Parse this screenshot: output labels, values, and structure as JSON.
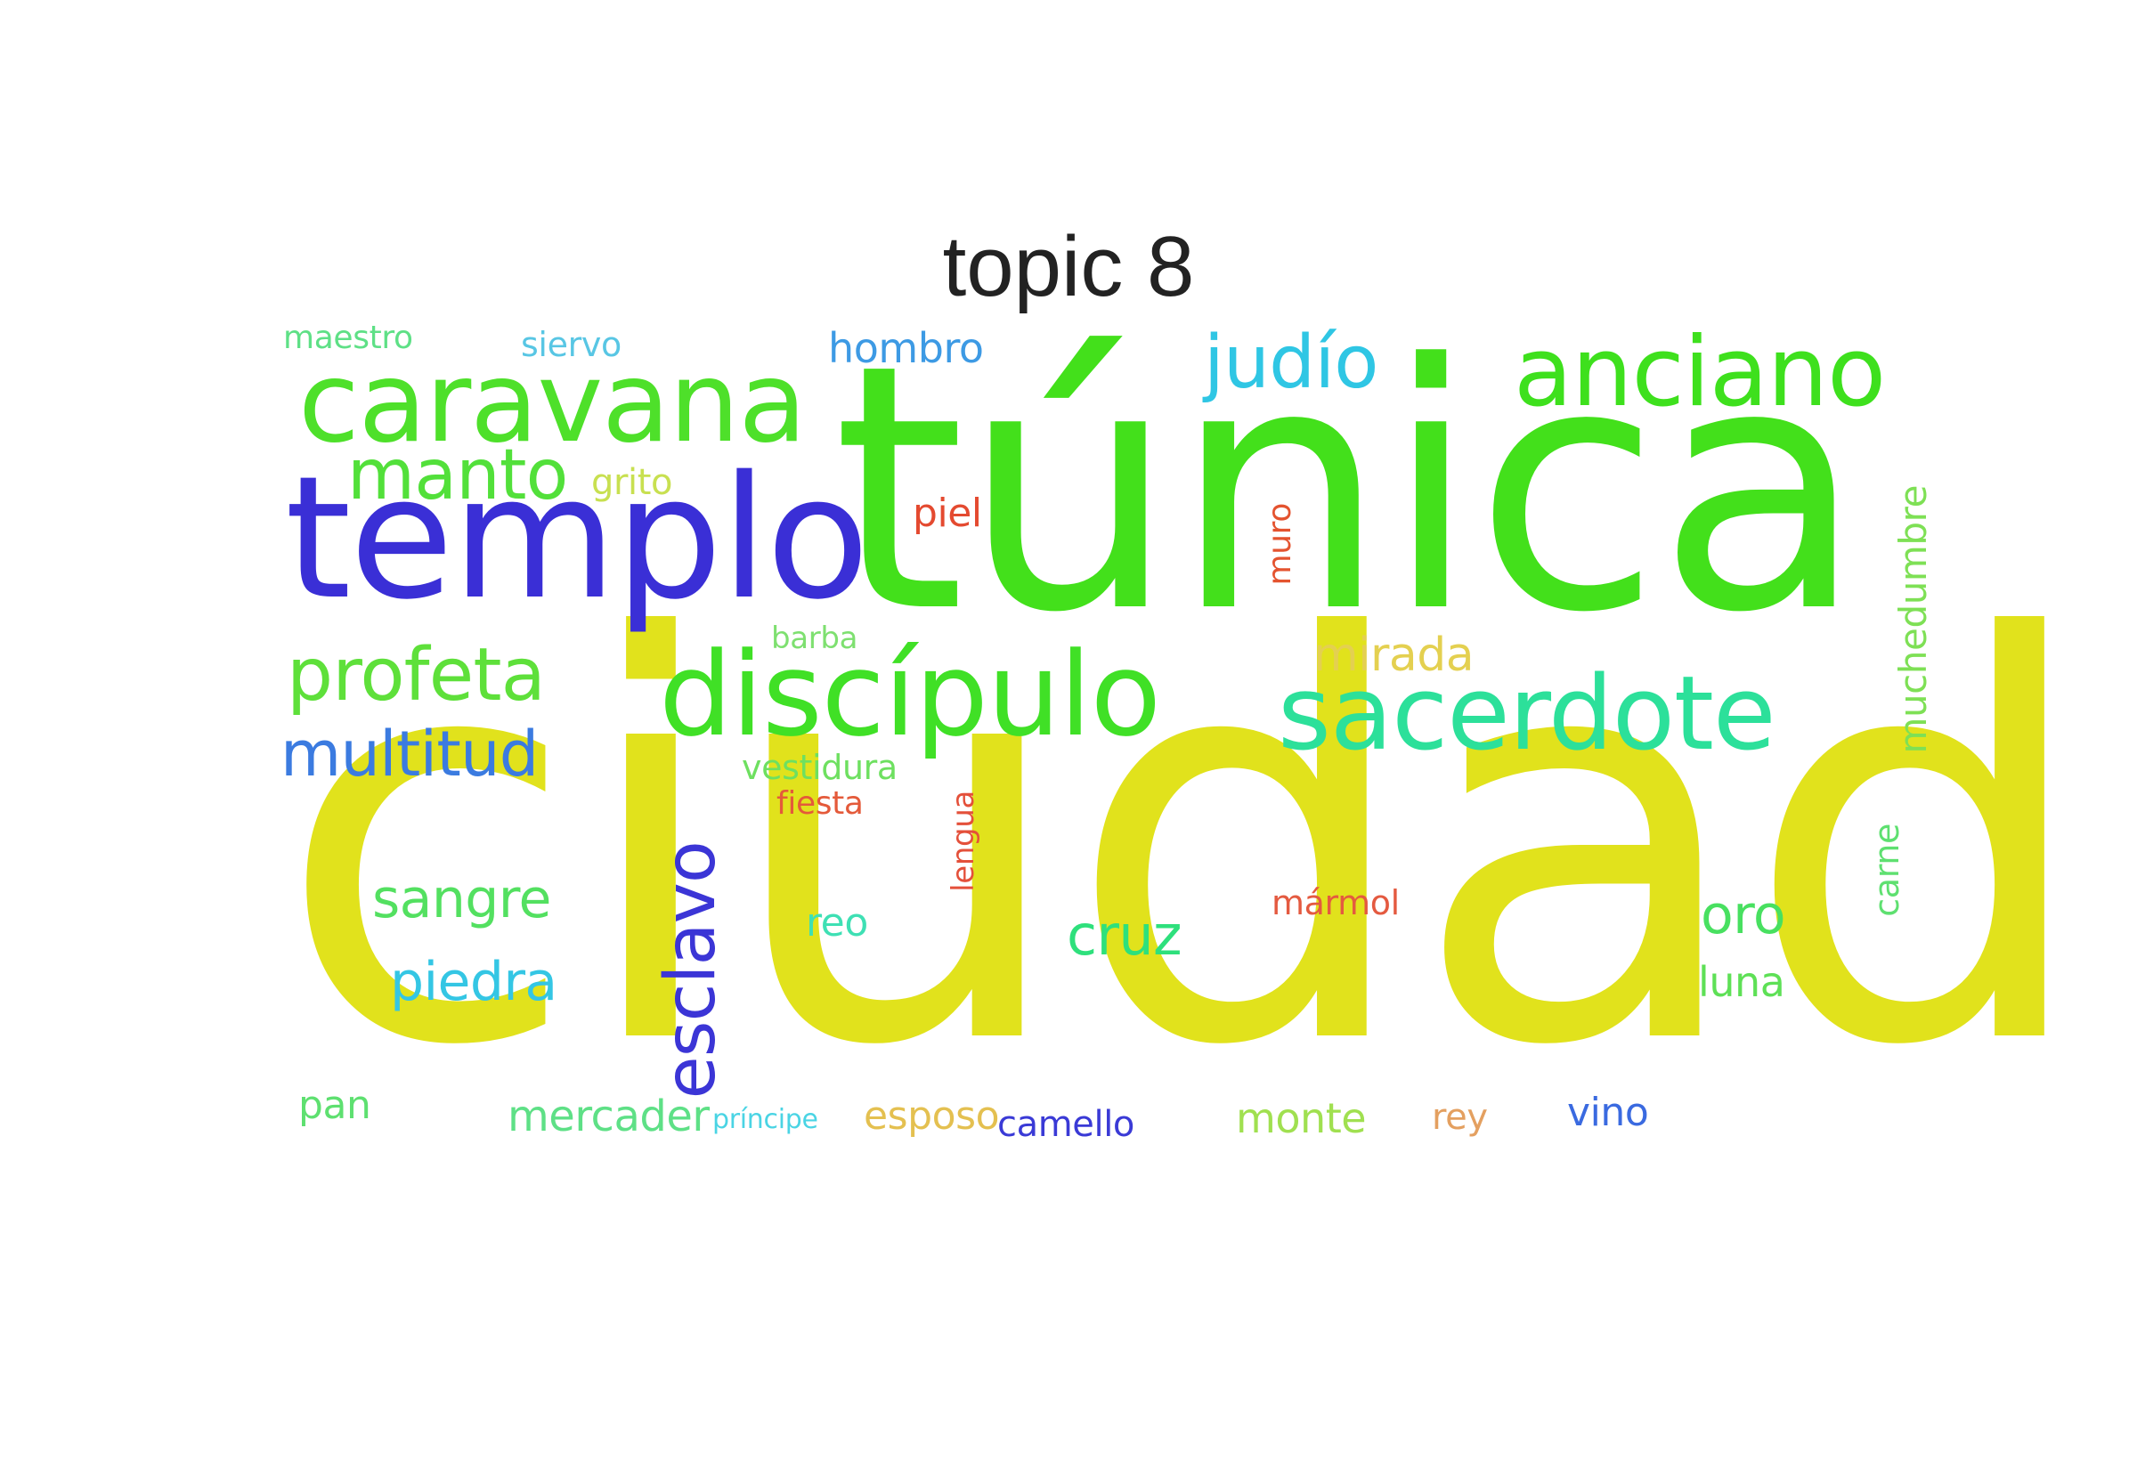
{
  "title": "topic 8",
  "words": [
    {
      "text": "ciudad",
      "color": "#e1e21c"
    },
    {
      "text": "túnica",
      "color": "#43e01b"
    },
    {
      "text": "templo",
      "color": "#3a2fd6"
    },
    {
      "text": "caravana",
      "color": "#4ee02a"
    },
    {
      "text": "anciano",
      "color": "#3ee01d"
    },
    {
      "text": "discípulo",
      "color": "#40e026"
    },
    {
      "text": "sacerdote",
      "color": "#2ce09a"
    },
    {
      "text": "judío",
      "color": "#2fc6e4"
    },
    {
      "text": "manto",
      "color": "#52e03a"
    },
    {
      "text": "profeta",
      "color": "#5ee03a"
    },
    {
      "text": "multitud",
      "color": "#3b7be0"
    },
    {
      "text": "esclavo",
      "color": "#3b35d6"
    },
    {
      "text": "sangre",
      "color": "#53e060"
    },
    {
      "text": "piedra",
      "color": "#34c6e4"
    },
    {
      "text": "cruz",
      "color": "#2ee07c"
    },
    {
      "text": "oro",
      "color": "#48e060"
    },
    {
      "text": "luna",
      "color": "#5ee056"
    },
    {
      "text": "mirada",
      "color": "#e4d050"
    },
    {
      "text": "muchedumbre",
      "color": "#7ee055"
    },
    {
      "text": "carne",
      "color": "#5ee070"
    },
    {
      "text": "maestro",
      "color": "#5ee086"
    },
    {
      "text": "siervo",
      "color": "#58c6e4"
    },
    {
      "text": "hombro",
      "color": "#3d9ae4"
    },
    {
      "text": "grito",
      "color": "#c8e050"
    },
    {
      "text": "piel",
      "color": "#e44a30"
    },
    {
      "text": "muro",
      "color": "#e4532f"
    },
    {
      "text": "barba",
      "color": "#7ee070"
    },
    {
      "text": "vestidura",
      "color": "#6ee060"
    },
    {
      "text": "fiesta",
      "color": "#e45a3a"
    },
    {
      "text": "lengua",
      "color": "#e4503a"
    },
    {
      "text": "mármol",
      "color": "#e45a40"
    },
    {
      "text": "reo",
      "color": "#3ee0b4"
    },
    {
      "text": "pan",
      "color": "#5ee070"
    },
    {
      "text": "mercader",
      "color": "#5ee086"
    },
    {
      "text": "príncipe",
      "color": "#4ad4e4"
    },
    {
      "text": "esposo",
      "color": "#e4c050"
    },
    {
      "text": "camello",
      "color": "#3a3ad6"
    },
    {
      "text": "monte",
      "color": "#a0e050"
    },
    {
      "text": "rey",
      "color": "#e4a060"
    },
    {
      "text": "vino",
      "color": "#3a6ae0"
    }
  ]
}
